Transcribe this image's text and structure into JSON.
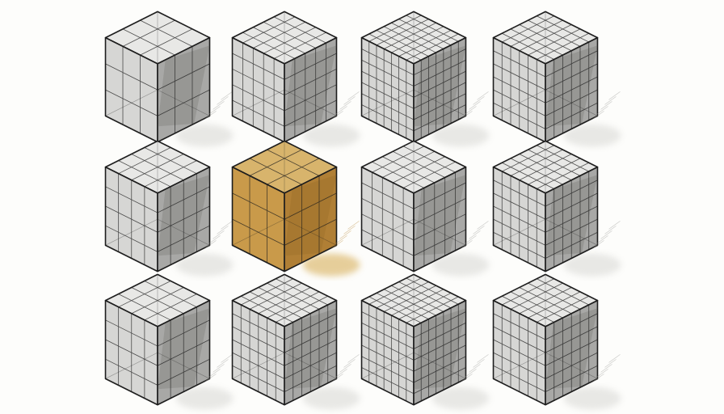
{
  "illustration": {
    "rows": 3,
    "columns": 4,
    "highlighted": {
      "row": 2,
      "column": 2
    },
    "colors": {
      "background": "#fdfdfb",
      "ink": "#1d1d1d",
      "gray_top": "#e8e8e6",
      "gray_left": "#d6d6d4",
      "gray_right": "#a8a8a6",
      "gold_top": "#d8b46c",
      "gold_left": "#c99a4a",
      "gold_right": "#b07f35",
      "shadow": "#cfcfcb",
      "gold_shadow": "#d4a84c"
    },
    "cubes": [
      {
        "row": 1,
        "column": 1,
        "grid": 3,
        "tone": "gray"
      },
      {
        "row": 1,
        "column": 2,
        "grid": 5,
        "tone": "gray"
      },
      {
        "row": 1,
        "column": 3,
        "grid": 7,
        "tone": "gray"
      },
      {
        "row": 1,
        "column": 4,
        "grid": 6,
        "tone": "gray"
      },
      {
        "row": 2,
        "column": 1,
        "grid": 4,
        "tone": "gray"
      },
      {
        "row": 2,
        "column": 2,
        "grid": 3,
        "tone": "gold"
      },
      {
        "row": 2,
        "column": 3,
        "grid": 5,
        "tone": "gray"
      },
      {
        "row": 2,
        "column": 4,
        "grid": 6,
        "tone": "gray"
      },
      {
        "row": 3,
        "column": 1,
        "grid": 4,
        "tone": "gray"
      },
      {
        "row": 3,
        "column": 2,
        "grid": 6,
        "tone": "gray"
      },
      {
        "row": 3,
        "column": 3,
        "grid": 7,
        "tone": "gray"
      },
      {
        "row": 3,
        "column": 4,
        "grid": 6,
        "tone": "gray"
      }
    ]
  }
}
